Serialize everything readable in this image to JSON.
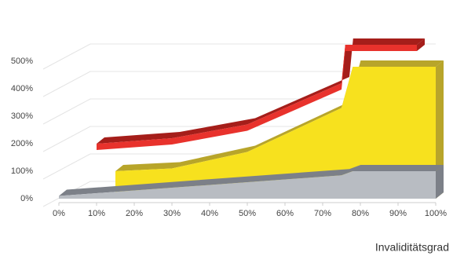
{
  "chart_data": {
    "type": "line3d",
    "x_label": "Invaliditätsgrad",
    "xlim": [
      0,
      100
    ],
    "xticks": [
      {
        "value": 0,
        "label": "0%"
      },
      {
        "value": 10,
        "label": "10%"
      },
      {
        "value": 20,
        "label": "20%"
      },
      {
        "value": 30,
        "label": "30%"
      },
      {
        "value": 40,
        "label": "40%"
      },
      {
        "value": 50,
        "label": "50%"
      },
      {
        "value": 60,
        "label": "60%"
      },
      {
        "value": 70,
        "label": "70%"
      },
      {
        "value": 80,
        "label": "80%"
      },
      {
        "value": 90,
        "label": "90%"
      },
      {
        "value": 100,
        "label": "100%"
      }
    ],
    "ylim": [
      0,
      600
    ],
    "yticks": [
      {
        "value": 0,
        "label": "0%"
      },
      {
        "value": 100,
        "label": "100%"
      },
      {
        "value": 200,
        "label": "200%"
      },
      {
        "value": 300,
        "label": "300%"
      },
      {
        "value": 400,
        "label": "400%"
      },
      {
        "value": 500,
        "label": "500%"
      }
    ],
    "grid": true,
    "series": [
      {
        "color": "#e8322c",
        "top": "#a51e1a",
        "fill": false,
        "x": [
          10,
          30,
          50,
          75,
          76,
          95
        ],
        "values": [
          200,
          220,
          270,
          420,
          560,
          560
        ]
      },
      {
        "color": "#f7e11e",
        "top": "#b8a52a",
        "fill": true,
        "x": [
          15,
          30,
          50,
          75,
          78,
          100
        ],
        "values": [
          100,
          110,
          170,
          330,
          480,
          480
        ]
      },
      {
        "color": "#b8bcc2",
        "top": "#7c8088",
        "fill": true,
        "x": [
          0,
          75,
          78,
          100
        ],
        "values": [
          10,
          85,
          100,
          100
        ]
      }
    ]
  }
}
